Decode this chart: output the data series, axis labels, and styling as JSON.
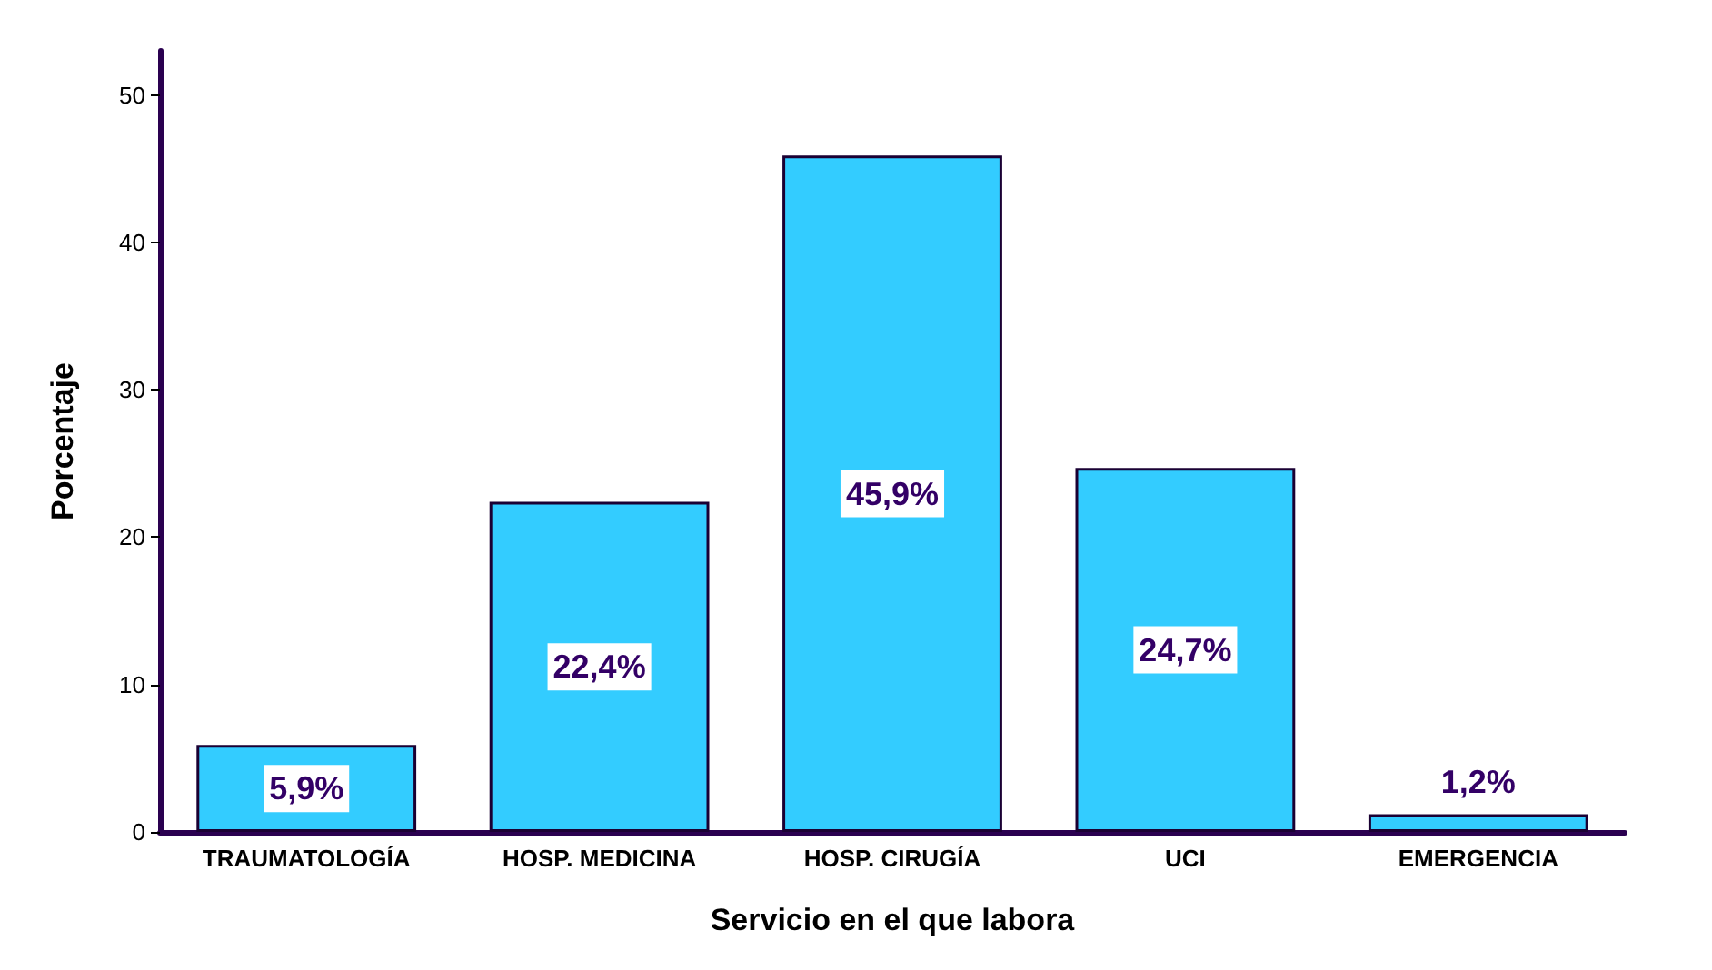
{
  "chart_data": {
    "type": "bar",
    "xlabel": "Servicio en el que labora",
    "ylabel": "Porcentaje",
    "categories": [
      "TRAUMATOLOGÍA",
      "HOSP. MEDICINA",
      "HOSP. CIRUGÍA",
      "UCI",
      "EMERGENCIA"
    ],
    "values": [
      5.9,
      22.4,
      45.9,
      24.7,
      1.2
    ],
    "value_labels": [
      "5,9%",
      "22,4%",
      "45,9%",
      "24,7%",
      "1,2%"
    ],
    "color": "#33ccff",
    "ylim": [
      0,
      53
    ],
    "yticks": [
      0,
      10,
      20,
      30,
      40,
      50
    ],
    "grid": false
  }
}
